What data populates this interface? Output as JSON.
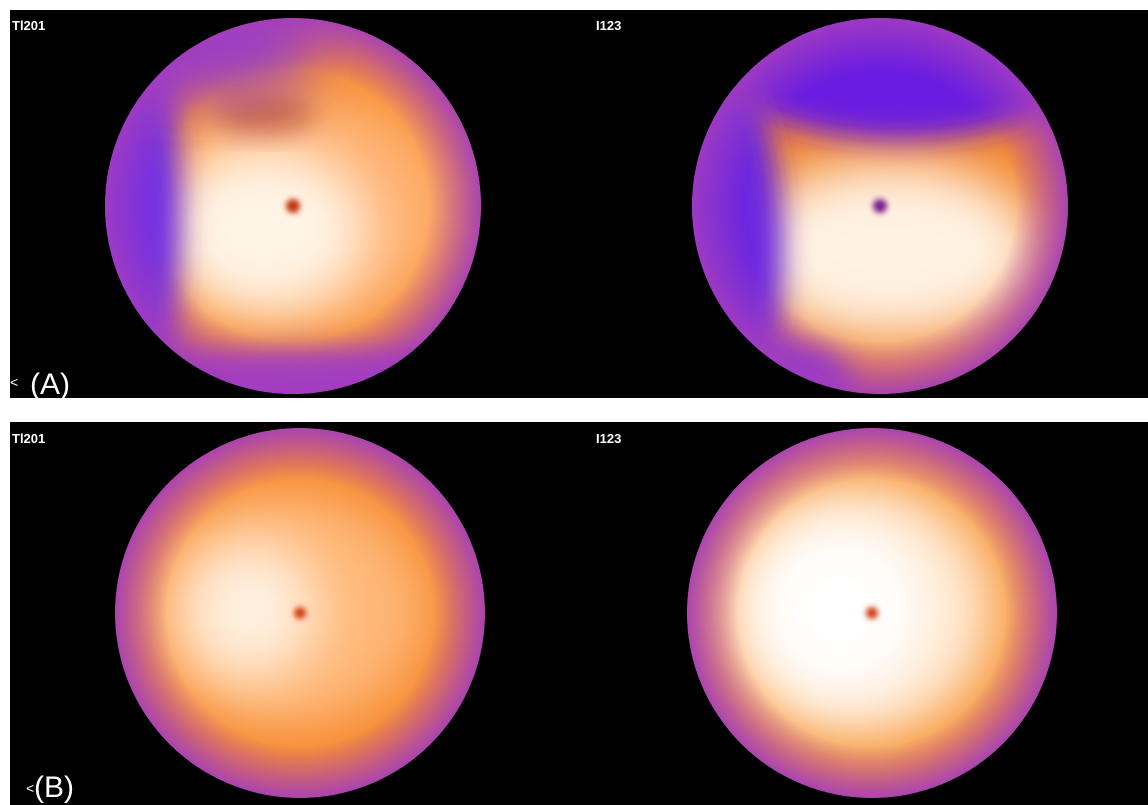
{
  "panels": [
    {
      "label": "(A)",
      "marker": "<",
      "images": [
        {
          "label": "Tl201"
        },
        {
          "label": "I123"
        }
      ]
    },
    {
      "label": "(B)",
      "marker": "<",
      "images": [
        {
          "label": "Tl201"
        },
        {
          "label": "I123"
        }
      ]
    }
  ]
}
